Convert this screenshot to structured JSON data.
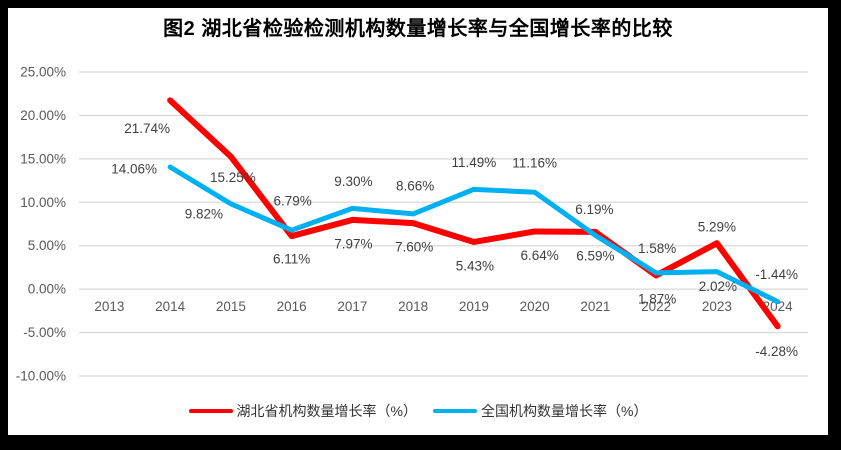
{
  "frame_color": "#000000",
  "background_color": "#FFFFFF",
  "chart_data": {
    "type": "line",
    "title": "图2 湖北省检验检测机构数量增长率与全国增长率的比较",
    "categories": [
      "2013",
      "2014",
      "2015",
      "2016",
      "2017",
      "2018",
      "2019",
      "2020",
      "2021",
      "2022",
      "2023",
      "2024"
    ],
    "series": [
      {
        "name": "湖北省机构数量增长率（%）",
        "color": "#FF0000",
        "values": [
          null,
          21.74,
          15.25,
          6.11,
          7.97,
          7.6,
          5.43,
          6.64,
          6.59,
          1.58,
          5.29,
          -4.28
        ],
        "labels": [
          null,
          "21.74%",
          "15.25%",
          "6.11%",
          "7.97%",
          "7.60%",
          "5.43%",
          "6.64%",
          "6.59%",
          "1.58%",
          "5.29%",
          "-4.28%"
        ],
        "label_offsets": [
          null,
          [
            -23,
            28
          ],
          [
            2,
            21
          ],
          [
            0,
            23
          ],
          [
            1,
            24
          ],
          [
            1,
            24
          ],
          [
            1,
            24
          ],
          [
            5,
            24
          ],
          [
            0,
            24
          ],
          [
            1,
            -27
          ],
          [
            0,
            -16
          ],
          [
            -1,
            25
          ]
        ]
      },
      {
        "name": "全国机构数量增长率（%）",
        "color": "#00B0F0",
        "values": [
          null,
          14.06,
          9.82,
          6.79,
          9.3,
          8.66,
          11.49,
          11.16,
          6.19,
          1.87,
          2.02,
          -1.44
        ],
        "labels": [
          null,
          "14.06%",
          "9.82%",
          "6.79%",
          "9.30%",
          "8.66%",
          "11.49%",
          "11.16%",
          "6.19%",
          "1.87%",
          "2.02%",
          "-1.44%"
        ],
        "label_offsets": [
          null,
          [
            -36,
            2
          ],
          [
            -27,
            10
          ],
          [
            1,
            -29
          ],
          [
            1,
            -27
          ],
          [
            2,
            -28
          ],
          [
            0,
            -27
          ],
          [
            0,
            -29
          ],
          [
            -1,
            -26
          ],
          [
            1,
            26
          ],
          [
            1,
            15
          ],
          [
            -1,
            -27
          ]
        ]
      }
    ],
    "y_ticks": [
      {
        "value": 25,
        "label": "25.00%"
      },
      {
        "value": 20,
        "label": "20.00%"
      },
      {
        "value": 15,
        "label": "15.00%"
      },
      {
        "value": 10,
        "label": "10.00%"
      },
      {
        "value": 5,
        "label": "5.00%"
      },
      {
        "value": 0,
        "label": "0.00%"
      },
      {
        "value": -5,
        "label": "-5.00%"
      },
      {
        "value": -10,
        "label": "-10.00%"
      }
    ],
    "ylim": [
      -10,
      25
    ],
    "grid": true,
    "legend_position": "bottom",
    "gridline_color": "#D9D9D9",
    "axis_text_color": "#595959",
    "data_label_color": "#404040",
    "title_color": "#000000"
  }
}
